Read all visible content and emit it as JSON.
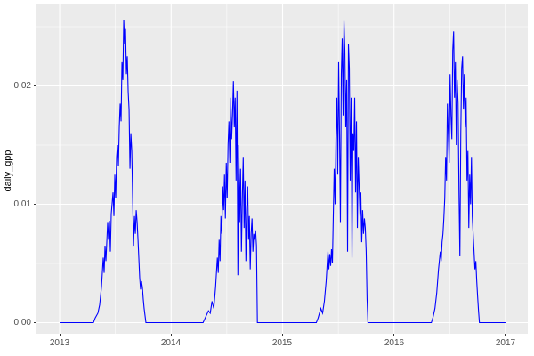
{
  "figure": {
    "background": "#FFFFFF",
    "panel_background": "#EBEBEB",
    "grid_color": "#FFFFFF",
    "axis_text_color": "#4D4D4D",
    "tick_color": "#333333"
  },
  "chart_data": {
    "type": "line",
    "title": "",
    "xlabel": "",
    "ylabel": "daily_gpp",
    "legend": "none",
    "grid": true,
    "line_color": "#0000FF",
    "xlim": [
      2012.792,
      2017.2
    ],
    "ylim": [
      -0.00094,
      0.02688
    ],
    "x_ticks": {
      "values": [
        2013,
        2014,
        2015,
        2016,
        2017
      ],
      "labels": [
        "2013",
        "2014",
        "2015",
        "2016",
        "2017"
      ]
    },
    "y_ticks": {
      "values": [
        0,
        0.01,
        0.02
      ],
      "labels": [
        "0.00",
        "0.01",
        "0.02"
      ]
    },
    "x_minor": [
      2013.5,
      2014.5,
      2015.5,
      2016.5
    ],
    "y_minor": [
      0.005,
      0.015,
      0.025
    ],
    "series": [
      {
        "name": "daily_gpp",
        "points": [
          [
            2013.0,
            0
          ],
          [
            2013.303,
            0
          ],
          [
            2013.319,
            0.0004
          ],
          [
            2013.343,
            0.0008
          ],
          [
            2013.359,
            0.0015
          ],
          [
            2013.375,
            0.003
          ],
          [
            2013.391,
            0.0055
          ],
          [
            2013.399,
            0.0042
          ],
          [
            2013.407,
            0.0065
          ],
          [
            2013.415,
            0.0052
          ],
          [
            2013.431,
            0.0085
          ],
          [
            2013.439,
            0.007
          ],
          [
            2013.447,
            0.0086
          ],
          [
            2013.455,
            0.006
          ],
          [
            2013.463,
            0.0092
          ],
          [
            2013.479,
            0.011
          ],
          [
            2013.487,
            0.009
          ],
          [
            2013.495,
            0.0125
          ],
          [
            2013.503,
            0.0105
          ],
          [
            2013.511,
            0.014
          ],
          [
            2013.519,
            0.015
          ],
          [
            2013.527,
            0.0132
          ],
          [
            2013.535,
            0.0165
          ],
          [
            2013.543,
            0.0185
          ],
          [
            2013.551,
            0.017
          ],
          [
            2013.559,
            0.022
          ],
          [
            2013.567,
            0.0205
          ],
          [
            2013.575,
            0.0256
          ],
          [
            2013.583,
            0.0235
          ],
          [
            2013.591,
            0.0248
          ],
          [
            2013.599,
            0.021
          ],
          [
            2013.607,
            0.0225
          ],
          [
            2013.615,
            0.0195
          ],
          [
            2013.623,
            0.018
          ],
          [
            2013.631,
            0.013
          ],
          [
            2013.639,
            0.016
          ],
          [
            2013.647,
            0.0145
          ],
          [
            2013.655,
            0.0105
          ],
          [
            2013.663,
            0.0065
          ],
          [
            2013.671,
            0.009
          ],
          [
            2013.679,
            0.0075
          ],
          [
            2013.687,
            0.0095
          ],
          [
            2013.695,
            0.0085
          ],
          [
            2013.703,
            0.007
          ],
          [
            2013.71,
            0.0055
          ],
          [
            2013.718,
            0.0038
          ],
          [
            2013.726,
            0.0028
          ],
          [
            2013.734,
            0.0035
          ],
          [
            2013.742,
            0.003
          ],
          [
            2013.75,
            0.002
          ],
          [
            2013.758,
            0.0012
          ],
          [
            2013.766,
            0.0006
          ],
          [
            2013.774,
            0
          ],
          [
            2014.287,
            0
          ],
          [
            2014.311,
            0.0005
          ],
          [
            2014.335,
            0.001
          ],
          [
            2014.351,
            0.0008
          ],
          [
            2014.367,
            0.0018
          ],
          [
            2014.383,
            0.0012
          ],
          [
            2014.399,
            0.003
          ],
          [
            2014.415,
            0.0055
          ],
          [
            2014.423,
            0.0042
          ],
          [
            2014.431,
            0.007
          ],
          [
            2014.439,
            0.0052
          ],
          [
            2014.447,
            0.009
          ],
          [
            2014.455,
            0.0075
          ],
          [
            2014.463,
            0.0115
          ],
          [
            2014.471,
            0.0095
          ],
          [
            2014.479,
            0.0125
          ],
          [
            2014.487,
            0.0088
          ],
          [
            2014.495,
            0.0135
          ],
          [
            2014.503,
            0.0105
          ],
          [
            2014.511,
            0.015
          ],
          [
            2014.519,
            0.017
          ],
          [
            2014.527,
            0.0135
          ],
          [
            2014.535,
            0.019
          ],
          [
            2014.543,
            0.0155
          ],
          [
            2014.551,
            0.0175
          ],
          [
            2014.559,
            0.0204
          ],
          [
            2014.567,
            0.0165
          ],
          [
            2014.575,
            0.019
          ],
          [
            2014.583,
            0.012
          ],
          [
            2014.591,
            0.0196
          ],
          [
            2014.599,
            0.004
          ],
          [
            2014.607,
            0.015
          ],
          [
            2014.615,
            0.0085
          ],
          [
            2014.623,
            0.013
          ],
          [
            2014.631,
            0.006
          ],
          [
            2014.639,
            0.0105
          ],
          [
            2014.647,
            0.014
          ],
          [
            2014.655,
            0.008
          ],
          [
            2014.663,
            0.012
          ],
          [
            2014.671,
            0.0052
          ],
          [
            2014.679,
            0.0095
          ],
          [
            2014.687,
            0.0115
          ],
          [
            2014.695,
            0.007
          ],
          [
            2014.702,
            0.009
          ],
          [
            2014.71,
            0.0045
          ],
          [
            2014.718,
            0.0075
          ],
          [
            2014.726,
            0.0088
          ],
          [
            2014.734,
            0.006
          ],
          [
            2014.742,
            0.0075
          ],
          [
            2014.75,
            0.007
          ],
          [
            2014.758,
            0.0078
          ],
          [
            2014.766,
            0.0065
          ],
          [
            2014.774,
            0
          ],
          [
            2015.303,
            0
          ],
          [
            2015.319,
            0.0004
          ],
          [
            2015.343,
            0.0012
          ],
          [
            2015.359,
            0.0008
          ],
          [
            2015.375,
            0.0018
          ],
          [
            2015.391,
            0.0035
          ],
          [
            2015.407,
            0.006
          ],
          [
            2015.415,
            0.0045
          ],
          [
            2015.423,
            0.0058
          ],
          [
            2015.431,
            0.0048
          ],
          [
            2015.439,
            0.0062
          ],
          [
            2015.447,
            0.005
          ],
          [
            2015.455,
            0.009
          ],
          [
            2015.463,
            0.013
          ],
          [
            2015.471,
            0.01
          ],
          [
            2015.479,
            0.0155
          ],
          [
            2015.487,
            0.019
          ],
          [
            2015.495,
            0.0125
          ],
          [
            2015.503,
            0.022
          ],
          [
            2015.511,
            0.016
          ],
          [
            2015.519,
            0.0085
          ],
          [
            2015.527,
            0.021
          ],
          [
            2015.535,
            0.024
          ],
          [
            2015.543,
            0.0175
          ],
          [
            2015.551,
            0.0255
          ],
          [
            2015.559,
            0.023
          ],
          [
            2015.567,
            0.0165
          ],
          [
            2015.575,
            0.0205
          ],
          [
            2015.583,
            0.006
          ],
          [
            2015.591,
            0.0235
          ],
          [
            2015.599,
            0.0215
          ],
          [
            2015.607,
            0.012
          ],
          [
            2015.615,
            0.019
          ],
          [
            2015.623,
            0.0055
          ],
          [
            2015.631,
            0.016
          ],
          [
            2015.639,
            0.0145
          ],
          [
            2015.647,
            0.019
          ],
          [
            2015.655,
            0.011
          ],
          [
            2015.663,
            0.017
          ],
          [
            2015.671,
            0.008
          ],
          [
            2015.679,
            0.014
          ],
          [
            2015.687,
            0.0115
          ],
          [
            2015.695,
            0.009
          ],
          [
            2015.702,
            0.011
          ],
          [
            2015.71,
            0.0068
          ],
          [
            2015.718,
            0.0095
          ],
          [
            2015.726,
            0.0075
          ],
          [
            2015.734,
            0.0088
          ],
          [
            2015.742,
            0.008
          ],
          [
            2015.75,
            0.006
          ],
          [
            2015.758,
            0.002
          ],
          [
            2015.766,
            0
          ],
          [
            2016.335,
            0
          ],
          [
            2016.351,
            0.0005
          ],
          [
            2016.367,
            0.0012
          ],
          [
            2016.383,
            0.0025
          ],
          [
            2016.399,
            0.0045
          ],
          [
            2016.415,
            0.006
          ],
          [
            2016.423,
            0.0052
          ],
          [
            2016.431,
            0.0068
          ],
          [
            2016.439,
            0.0075
          ],
          [
            2016.447,
            0.0088
          ],
          [
            2016.455,
            0.0105
          ],
          [
            2016.463,
            0.014
          ],
          [
            2016.471,
            0.012
          ],
          [
            2016.479,
            0.0185
          ],
          [
            2016.487,
            0.016
          ],
          [
            2016.495,
            0.0135
          ],
          [
            2016.503,
            0.021
          ],
          [
            2016.511,
            0.0175
          ],
          [
            2016.519,
            0.0155
          ],
          [
            2016.527,
            0.023
          ],
          [
            2016.535,
            0.0246
          ],
          [
            2016.543,
            0.019
          ],
          [
            2016.551,
            0.022
          ],
          [
            2016.559,
            0.015
          ],
          [
            2016.567,
            0.0205
          ],
          [
            2016.575,
            0.0185
          ],
          [
            2016.583,
            0.011
          ],
          [
            2016.591,
            0.0056
          ],
          [
            2016.599,
            0.016
          ],
          [
            2016.607,
            0.0215
          ],
          [
            2016.615,
            0.0225
          ],
          [
            2016.623,
            0.018
          ],
          [
            2016.631,
            0.021
          ],
          [
            2016.639,
            0.0165
          ],
          [
            2016.647,
            0.019
          ],
          [
            2016.655,
            0.012
          ],
          [
            2016.663,
            0.0145
          ],
          [
            2016.671,
            0.008
          ],
          [
            2016.679,
            0.0125
          ],
          [
            2016.687,
            0.01
          ],
          [
            2016.695,
            0.014
          ],
          [
            2016.702,
            0.009
          ],
          [
            2016.71,
            0.0075
          ],
          [
            2016.718,
            0.006
          ],
          [
            2016.726,
            0.0045
          ],
          [
            2016.734,
            0.0052
          ],
          [
            2016.742,
            0.0035
          ],
          [
            2016.75,
            0.0022
          ],
          [
            2016.758,
            0.001
          ],
          [
            2016.766,
            0
          ],
          [
            2017.0,
            0
          ]
        ]
      }
    ]
  }
}
